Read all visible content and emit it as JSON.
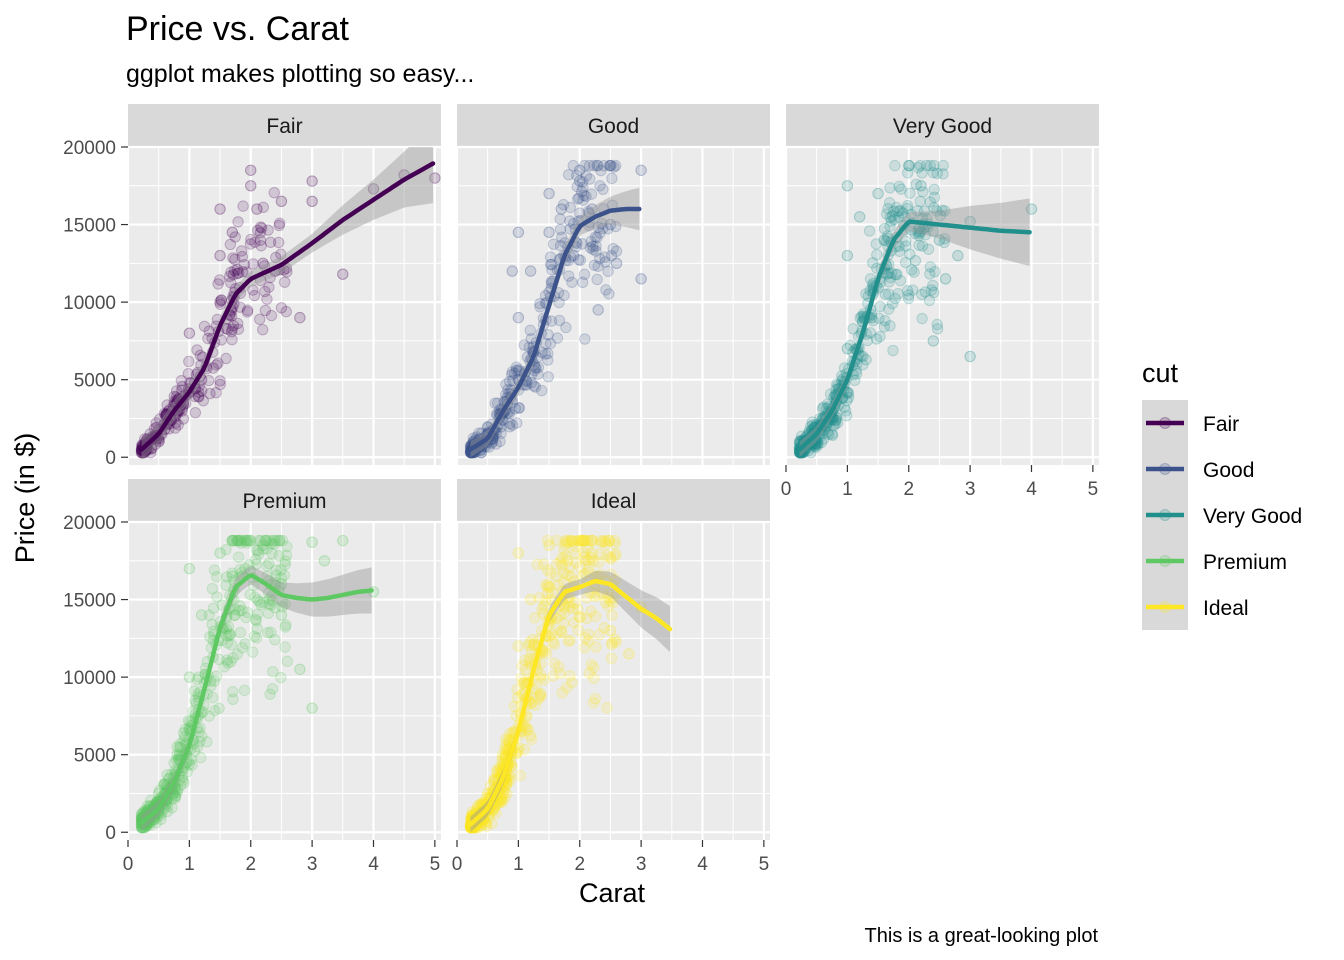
{
  "chart_data": {
    "type": "scatter",
    "title": "Price vs. Carat",
    "subtitle": "ggplot makes plotting so easy...",
    "caption": "This is a great-looking plot",
    "xlabel": "Carat",
    "ylabel": "Price (in $)",
    "xlim": [
      0,
      5.1
    ],
    "ylim": [
      -500,
      20000
    ],
    "x_ticks": [
      0,
      1,
      2,
      3,
      4,
      5
    ],
    "y_ticks": [
      0,
      5000,
      10000,
      15000,
      20000
    ],
    "legend": {
      "title": "cut",
      "placement": "right"
    },
    "grid": true,
    "panels": [
      {
        "name": "Fair",
        "color": "#440154",
        "smooth": [
          [
            0.22,
            500
          ],
          [
            0.5,
            1500
          ],
          [
            0.75,
            3000
          ],
          [
            1.0,
            4200
          ],
          [
            1.25,
            5800
          ],
          [
            1.5,
            8500
          ],
          [
            1.75,
            10500
          ],
          [
            2.0,
            11500
          ],
          [
            2.5,
            12400
          ],
          [
            3.0,
            13800
          ],
          [
            3.5,
            15300
          ],
          [
            4.0,
            16600
          ],
          [
            4.5,
            17900
          ],
          [
            5.0,
            19000
          ]
        ],
        "band": [
          [
            0.22,
            700
          ],
          [
            1.0,
            600
          ],
          [
            2.0,
            500
          ],
          [
            3.0,
            600
          ],
          [
            4.0,
            1300
          ],
          [
            4.5,
            1800
          ],
          [
            5.0,
            2600
          ]
        ],
        "points": [
          [
            0.3,
            500
          ],
          [
            0.5,
            1200
          ],
          [
            0.6,
            1800
          ],
          [
            0.7,
            2400
          ],
          [
            0.8,
            3000
          ],
          [
            0.9,
            3500
          ],
          [
            1.0,
            4200
          ],
          [
            1.0,
            8000
          ],
          [
            1.2,
            5000
          ],
          [
            1.5,
            13000
          ],
          [
            1.5,
            16000
          ],
          [
            1.7,
            14500
          ],
          [
            2.0,
            18500
          ],
          [
            2.0,
            17500
          ],
          [
            2.1,
            16000
          ],
          [
            2.2,
            12500
          ],
          [
            2.5,
            16500
          ],
          [
            3.0,
            17800
          ],
          [
            3.0,
            16500
          ],
          [
            3.5,
            11800
          ],
          [
            4.0,
            17300
          ],
          [
            4.5,
            18200
          ],
          [
            5.0,
            18000
          ],
          [
            2.4,
            12000
          ],
          [
            2.8,
            9000
          ]
        ]
      },
      {
        "name": "Good",
        "color": "#3b528b",
        "smooth": [
          [
            0.22,
            500
          ],
          [
            0.5,
            1200
          ],
          [
            0.75,
            3000
          ],
          [
            1.0,
            4500
          ],
          [
            1.25,
            6500
          ],
          [
            1.5,
            9800
          ],
          [
            1.75,
            13000
          ],
          [
            2.0,
            14900
          ],
          [
            2.25,
            15500
          ],
          [
            2.5,
            15900
          ],
          [
            2.75,
            16000
          ],
          [
            3.0,
            16000
          ]
        ],
        "band": [
          [
            0.22,
            500
          ],
          [
            1.0,
            500
          ],
          [
            2.0,
            600
          ],
          [
            2.5,
            900
          ],
          [
            3.0,
            1400
          ]
        ],
        "points": [
          [
            0.3,
            500
          ],
          [
            0.5,
            1500
          ],
          [
            0.7,
            2800
          ],
          [
            1.0,
            5000
          ],
          [
            1.0,
            9000
          ],
          [
            1.2,
            12000
          ],
          [
            1.5,
            14500
          ],
          [
            1.5,
            17000
          ],
          [
            1.7,
            16000
          ],
          [
            2.0,
            18500
          ],
          [
            2.0,
            17800
          ],
          [
            2.2,
            16000
          ],
          [
            2.5,
            15000
          ],
          [
            3.0,
            11500
          ],
          [
            3.0,
            18500
          ],
          [
            1.0,
            14500
          ],
          [
            0.9,
            12000
          ],
          [
            2.6,
            12500
          ],
          [
            2.3,
            9500
          ]
        ]
      },
      {
        "name": "Very Good",
        "color": "#21908c",
        "smooth": [
          [
            0.22,
            500
          ],
          [
            0.5,
            1500
          ],
          [
            0.75,
            3000
          ],
          [
            1.0,
            5000
          ],
          [
            1.25,
            8000
          ],
          [
            1.5,
            11500
          ],
          [
            1.75,
            14000
          ],
          [
            2.0,
            15200
          ],
          [
            2.5,
            15000
          ],
          [
            3.0,
            14800
          ],
          [
            3.5,
            14600
          ],
          [
            4.0,
            14500
          ]
        ],
        "band": [
          [
            0.22,
            500
          ],
          [
            1.0,
            500
          ],
          [
            2.0,
            600
          ],
          [
            2.5,
            900
          ],
          [
            3.0,
            1400
          ],
          [
            3.5,
            1800
          ],
          [
            4.0,
            2200
          ]
        ],
        "points": [
          [
            0.3,
            500
          ],
          [
            0.5,
            2000
          ],
          [
            0.8,
            4000
          ],
          [
            1.0,
            7000
          ],
          [
            1.0,
            13000
          ],
          [
            1.2,
            15500
          ],
          [
            1.5,
            17000
          ],
          [
            1.6,
            14000
          ],
          [
            2.0,
            18800
          ],
          [
            2.2,
            17500
          ],
          [
            2.5,
            14000
          ],
          [
            2.6,
            11500
          ],
          [
            2.8,
            13000
          ],
          [
            3.0,
            15200
          ],
          [
            3.0,
            6500
          ],
          [
            4.0,
            16000
          ],
          [
            1.0,
            17500
          ],
          [
            2.4,
            7500
          ]
        ]
      },
      {
        "name": "Premium",
        "color": "#5ec962",
        "smooth": [
          [
            0.22,
            600
          ],
          [
            0.5,
            1500
          ],
          [
            0.75,
            3200
          ],
          [
            1.0,
            5600
          ],
          [
            1.25,
            9300
          ],
          [
            1.5,
            13200
          ],
          [
            1.75,
            15800
          ],
          [
            2.0,
            16600
          ],
          [
            2.25,
            16000
          ],
          [
            2.5,
            15300
          ],
          [
            2.75,
            15100
          ],
          [
            3.0,
            15000
          ],
          [
            3.25,
            15100
          ],
          [
            3.5,
            15300
          ],
          [
            3.75,
            15500
          ],
          [
            4.0,
            15600
          ]
        ],
        "band": [
          [
            0.22,
            500
          ],
          [
            1.0,
            500
          ],
          [
            2.0,
            600
          ],
          [
            2.5,
            800
          ],
          [
            3.0,
            1100
          ],
          [
            3.5,
            1300
          ],
          [
            4.0,
            1500
          ]
        ],
        "points": [
          [
            0.3,
            500
          ],
          [
            0.5,
            2500
          ],
          [
            0.8,
            5000
          ],
          [
            1.0,
            10000
          ],
          [
            1.0,
            17000
          ],
          [
            1.2,
            14000
          ],
          [
            1.5,
            18000
          ],
          [
            1.7,
            16500
          ],
          [
            2.0,
            18800
          ],
          [
            2.2,
            18500
          ],
          [
            2.5,
            14000
          ],
          [
            3.0,
            18700
          ],
          [
            3.0,
            8000
          ],
          [
            3.5,
            18800
          ],
          [
            4.0,
            15500
          ],
          [
            2.8,
            10500
          ],
          [
            2.5,
            16000
          ],
          [
            3.2,
            17500
          ]
        ]
      },
      {
        "name": "Ideal",
        "color": "#fde725",
        "smooth": [
          [
            0.22,
            500
          ],
          [
            0.5,
            1500
          ],
          [
            0.75,
            3500
          ],
          [
            1.0,
            6500
          ],
          [
            1.25,
            10500
          ],
          [
            1.5,
            14000
          ],
          [
            1.75,
            15500
          ],
          [
            2.0,
            15800
          ],
          [
            2.25,
            16200
          ],
          [
            2.5,
            16000
          ],
          [
            2.75,
            15200
          ],
          [
            3.0,
            14400
          ],
          [
            3.25,
            13800
          ],
          [
            3.5,
            13000
          ]
        ],
        "band": [
          [
            0.22,
            500
          ],
          [
            1.0,
            500
          ],
          [
            2.0,
            500
          ],
          [
            2.5,
            800
          ],
          [
            3.0,
            1200
          ],
          [
            3.5,
            1500
          ]
        ],
        "points": [
          [
            0.3,
            500
          ],
          [
            0.5,
            2500
          ],
          [
            0.8,
            6000
          ],
          [
            1.0,
            12000
          ],
          [
            1.0,
            18000
          ],
          [
            1.2,
            15000
          ],
          [
            1.5,
            18500
          ],
          [
            2.0,
            18800
          ],
          [
            2.2,
            18000
          ],
          [
            2.5,
            13000
          ],
          [
            2.8,
            11500
          ],
          [
            3.0,
            14500
          ],
          [
            1.8,
            17500
          ],
          [
            2.3,
            16500
          ]
        ]
      }
    ]
  },
  "icons": {
    "legend_key_shape": "line-with-circle"
  },
  "colors": {
    "panel_bg": "#ebebeb",
    "strip_bg": "#d9d9d9",
    "grid": "#ffffff",
    "smooth_band": "#999999"
  }
}
